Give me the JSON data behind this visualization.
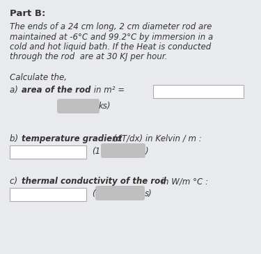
{
  "background_color": "#e8eaed",
  "title": "Part B:",
  "title_fontsize": 9.5,
  "title_fontweight": "bold",
  "body_line1": "The ends of a 24 cm long, 2 cm diameter rod are",
  "body_line2": "maintained at -6°C and 99.2°C by immersion in a",
  "body_line3": "cold and hot liquid bath. If the Heat is conducted",
  "body_line4": "through the rod  are at 30 KJ per hour.",
  "body_fontsize": 8.5,
  "calculate_text": "Calculate the,",
  "calculate_fontsize": 8.5,
  "label_fontsize": 8.5,
  "box_color": "#ffffff",
  "box_border": "#aaaaaa",
  "blurred_color": "#b5b5b5",
  "text_color": "#333333"
}
